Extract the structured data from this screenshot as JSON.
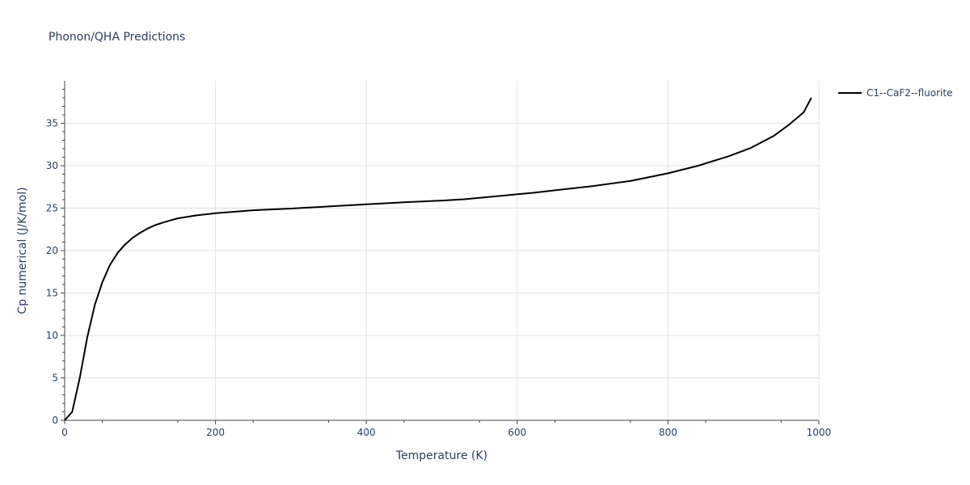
{
  "chart_data": {
    "type": "line",
    "title": "Phonon/QHA Predictions",
    "xlabel": "Temperature (K)",
    "ylabel": "Cp numerical (J/K/mol)",
    "xlim": [
      0,
      1000
    ],
    "ylim": [
      0,
      40
    ],
    "x_ticks": [
      0,
      200,
      400,
      600,
      800,
      1000
    ],
    "y_ticks": [
      0,
      5,
      10,
      15,
      20,
      25,
      30,
      35
    ],
    "x_tick_labels": [
      "0",
      "200",
      "400",
      "600",
      "800",
      "1000"
    ],
    "y_tick_labels": [
      "0",
      "5",
      "10",
      "15",
      "20",
      "25",
      "30",
      "35"
    ],
    "grid": true,
    "legend_position": "top-right",
    "series": [
      {
        "name": "C1--CaF2--fluorite",
        "color": "#000000",
        "x": [
          0,
          10,
          20,
          30,
          40,
          50,
          60,
          70,
          80,
          90,
          100,
          110,
          120,
          130,
          140,
          150,
          175,
          200,
          250,
          300,
          350,
          400,
          450,
          500,
          530,
          560,
          590,
          620,
          660,
          700,
          750,
          800,
          840,
          880,
          910,
          940,
          960,
          980,
          990
        ],
        "y": [
          0,
          1.0,
          5.0,
          9.8,
          13.6,
          16.3,
          18.3,
          19.7,
          20.7,
          21.5,
          22.1,
          22.6,
          23.0,
          23.3,
          23.55,
          23.8,
          24.15,
          24.4,
          24.75,
          24.95,
          25.2,
          25.45,
          25.7,
          25.9,
          26.05,
          26.3,
          26.55,
          26.8,
          27.2,
          27.6,
          28.2,
          29.1,
          30.0,
          31.1,
          32.1,
          33.5,
          34.8,
          36.3,
          38.0
        ]
      }
    ]
  }
}
